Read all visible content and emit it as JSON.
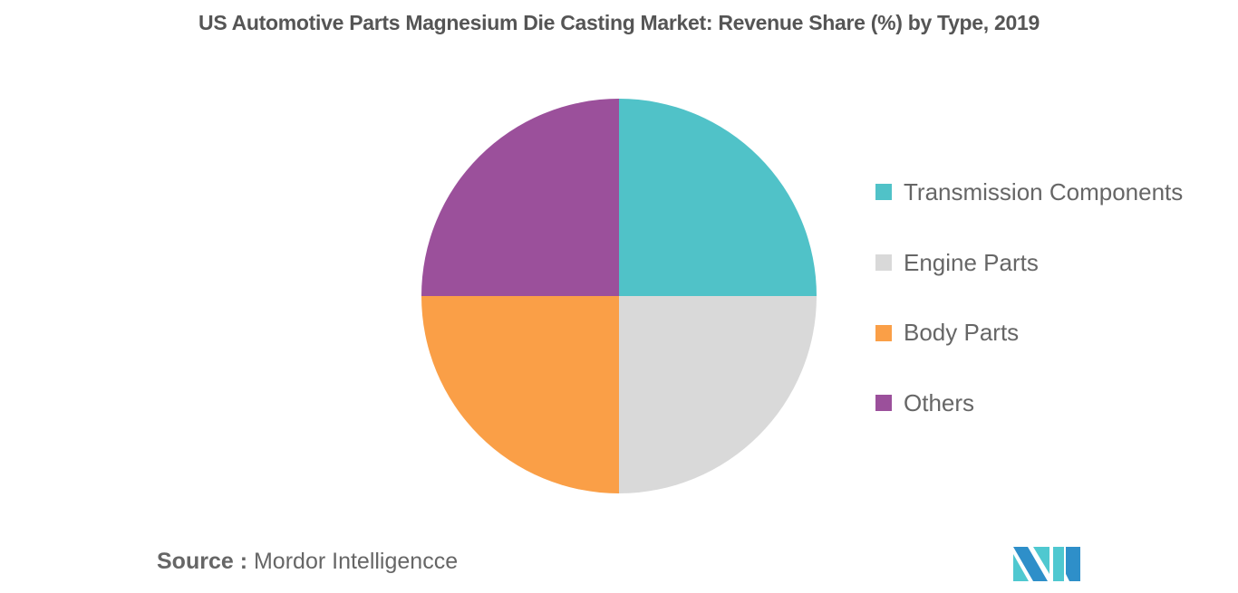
{
  "title": "US Automotive Parts Magnesium Die Casting Market: Revenue Share (%) by Type, 2019",
  "legend": {
    "items": [
      {
        "label": "Transmission Components",
        "color": "#50C2C8"
      },
      {
        "label": "Engine Parts",
        "color": "#D9D9D9"
      },
      {
        "label": "Body Parts",
        "color": "#FA9F47"
      },
      {
        "label": "Others",
        "color": "#9B509B"
      }
    ]
  },
  "source": {
    "label": "Source :",
    "value": "Mordor Intelligencce"
  },
  "logo": {
    "icon": "mordor-intelligence-logo-icon",
    "colors": [
      "#2E8FC9",
      "#4FC8D0"
    ]
  },
  "chart_data": {
    "type": "pie",
    "title": "US Automotive Parts Magnesium Die Casting Market: Revenue Share (%) by Type, 2019",
    "categories": [
      "Transmission Components",
      "Engine Parts",
      "Body Parts",
      "Others"
    ],
    "values": [
      25,
      25,
      25,
      25
    ],
    "colors": [
      "#50C2C8",
      "#D9D9D9",
      "#FA9F47",
      "#9B509B"
    ],
    "unit": "%",
    "start_angle_deg": 90,
    "direction": "clockwise",
    "legend_position": "right",
    "data_labels": false
  }
}
